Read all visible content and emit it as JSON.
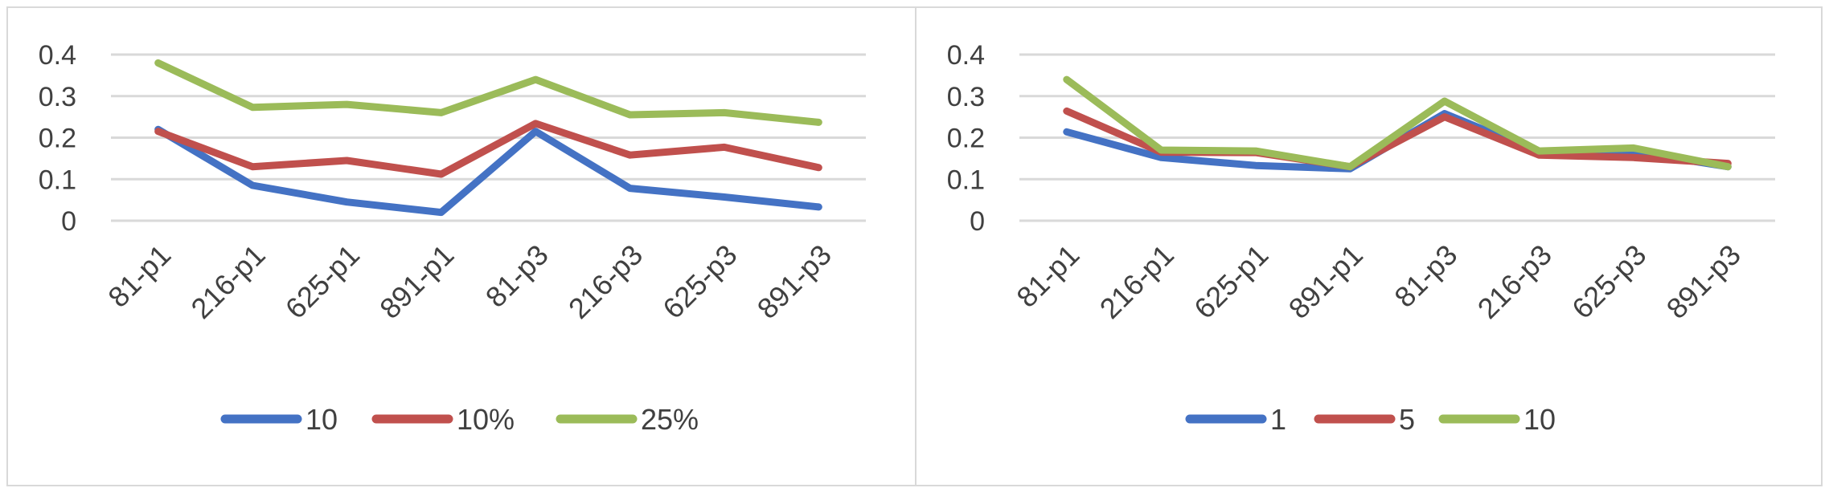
{
  "chart_data": [
    {
      "type": "line",
      "categories": [
        "81-p1",
        "216-p1",
        "625-p1",
        "891-p1",
        "81-p3",
        "216-p3",
        "625-p3",
        "891-p3"
      ],
      "y_ticks": [
        "0",
        "0.1",
        "0.2",
        "0.3",
        "0.4"
      ],
      "ylim": [
        0,
        0.4
      ],
      "grid": true,
      "legend": "bottom",
      "series": [
        {
          "name": "10",
          "color": "#4472C4",
          "values": [
            0.22,
            0.085,
            0.045,
            0.02,
            0.215,
            0.078,
            0.057,
            0.033
          ]
        },
        {
          "name": "10%",
          "color": "#C0504D",
          "values": [
            0.215,
            0.13,
            0.145,
            0.112,
            0.234,
            0.158,
            0.177,
            0.128
          ]
        },
        {
          "name": "25%",
          "color": "#9BBB59",
          "values": [
            0.38,
            0.273,
            0.28,
            0.26,
            0.34,
            0.255,
            0.26,
            0.237
          ]
        }
      ]
    },
    {
      "type": "line",
      "categories": [
        "81-p1",
        "216-p1",
        "625-p1",
        "891-p1",
        "81-p3",
        "216-p3",
        "625-p3",
        "891-p3"
      ],
      "y_ticks": [
        "0",
        "0.1",
        "0.2",
        "0.3",
        "0.4"
      ],
      "ylim": [
        0,
        0.4
      ],
      "grid": true,
      "legend": "bottom",
      "series": [
        {
          "name": "1",
          "color": "#4472C4",
          "values": [
            0.214,
            0.152,
            0.133,
            0.125,
            0.258,
            0.165,
            0.166,
            0.13
          ]
        },
        {
          "name": "5",
          "color": "#C0504D",
          "values": [
            0.264,
            0.165,
            0.164,
            0.13,
            0.25,
            0.158,
            0.152,
            0.138
          ]
        },
        {
          "name": "10",
          "color": "#9BBB59",
          "values": [
            0.34,
            0.17,
            0.168,
            0.13,
            0.288,
            0.168,
            0.175,
            0.13
          ]
        }
      ]
    }
  ]
}
